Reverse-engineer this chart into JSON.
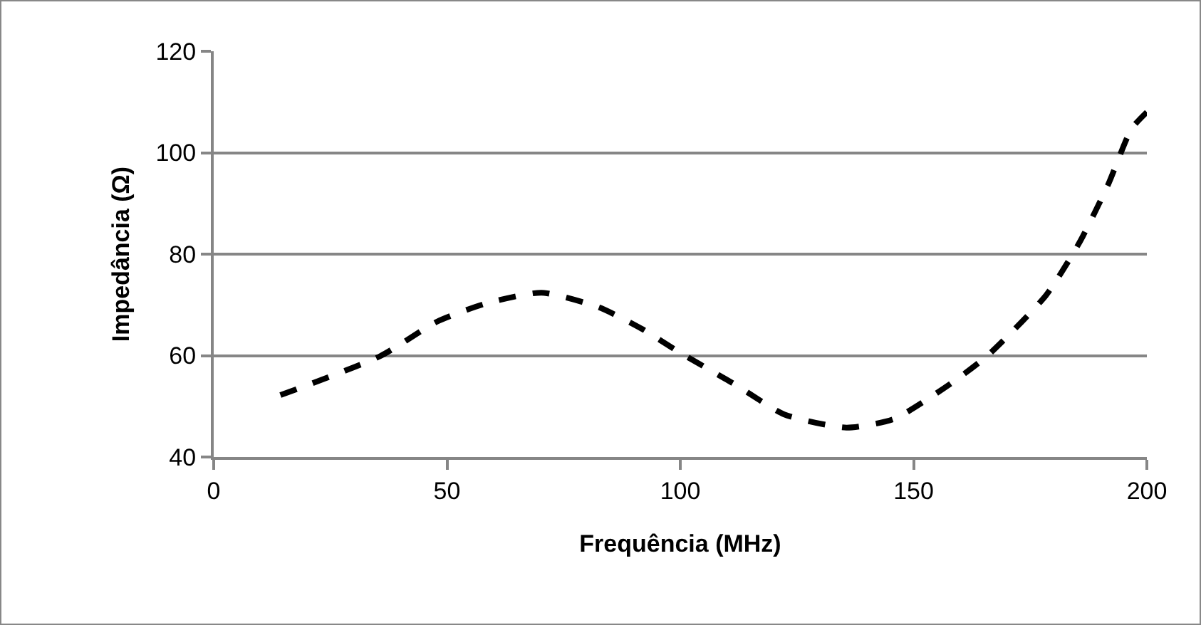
{
  "chart_data": {
    "type": "line",
    "xlabel": "Frequência (MHz)",
    "ylabel": "Impedância (Ω)",
    "x": [
      14.3,
      35.7,
      47.9,
      58.1,
      70.3,
      82.6,
      91.7,
      99.9,
      112.1,
      122.3,
      135.6,
      145.8,
      158,
      166.1,
      178.4,
      185.5,
      191.6,
      196.7,
      200
    ],
    "series": [
      {
        "color": "#000000",
        "values": [
          52.2,
          59.9,
          66.7,
          70.2,
          72.4,
          69.5,
          65.3,
          60.6,
          54.1,
          48.4,
          45.8,
          47.5,
          54.5,
          60.2,
          71.9,
          82.2,
          93.5,
          104.7,
          108
        ]
      }
    ],
    "xlim": [
      0,
      200
    ],
    "xticks": [
      0,
      50,
      100,
      150,
      200
    ],
    "ylim": [
      40,
      120
    ],
    "yticks": [
      40,
      60,
      80,
      100,
      120
    ],
    "grid": "y",
    "legend": false,
    "marker": "none",
    "line_style": "dashed"
  }
}
